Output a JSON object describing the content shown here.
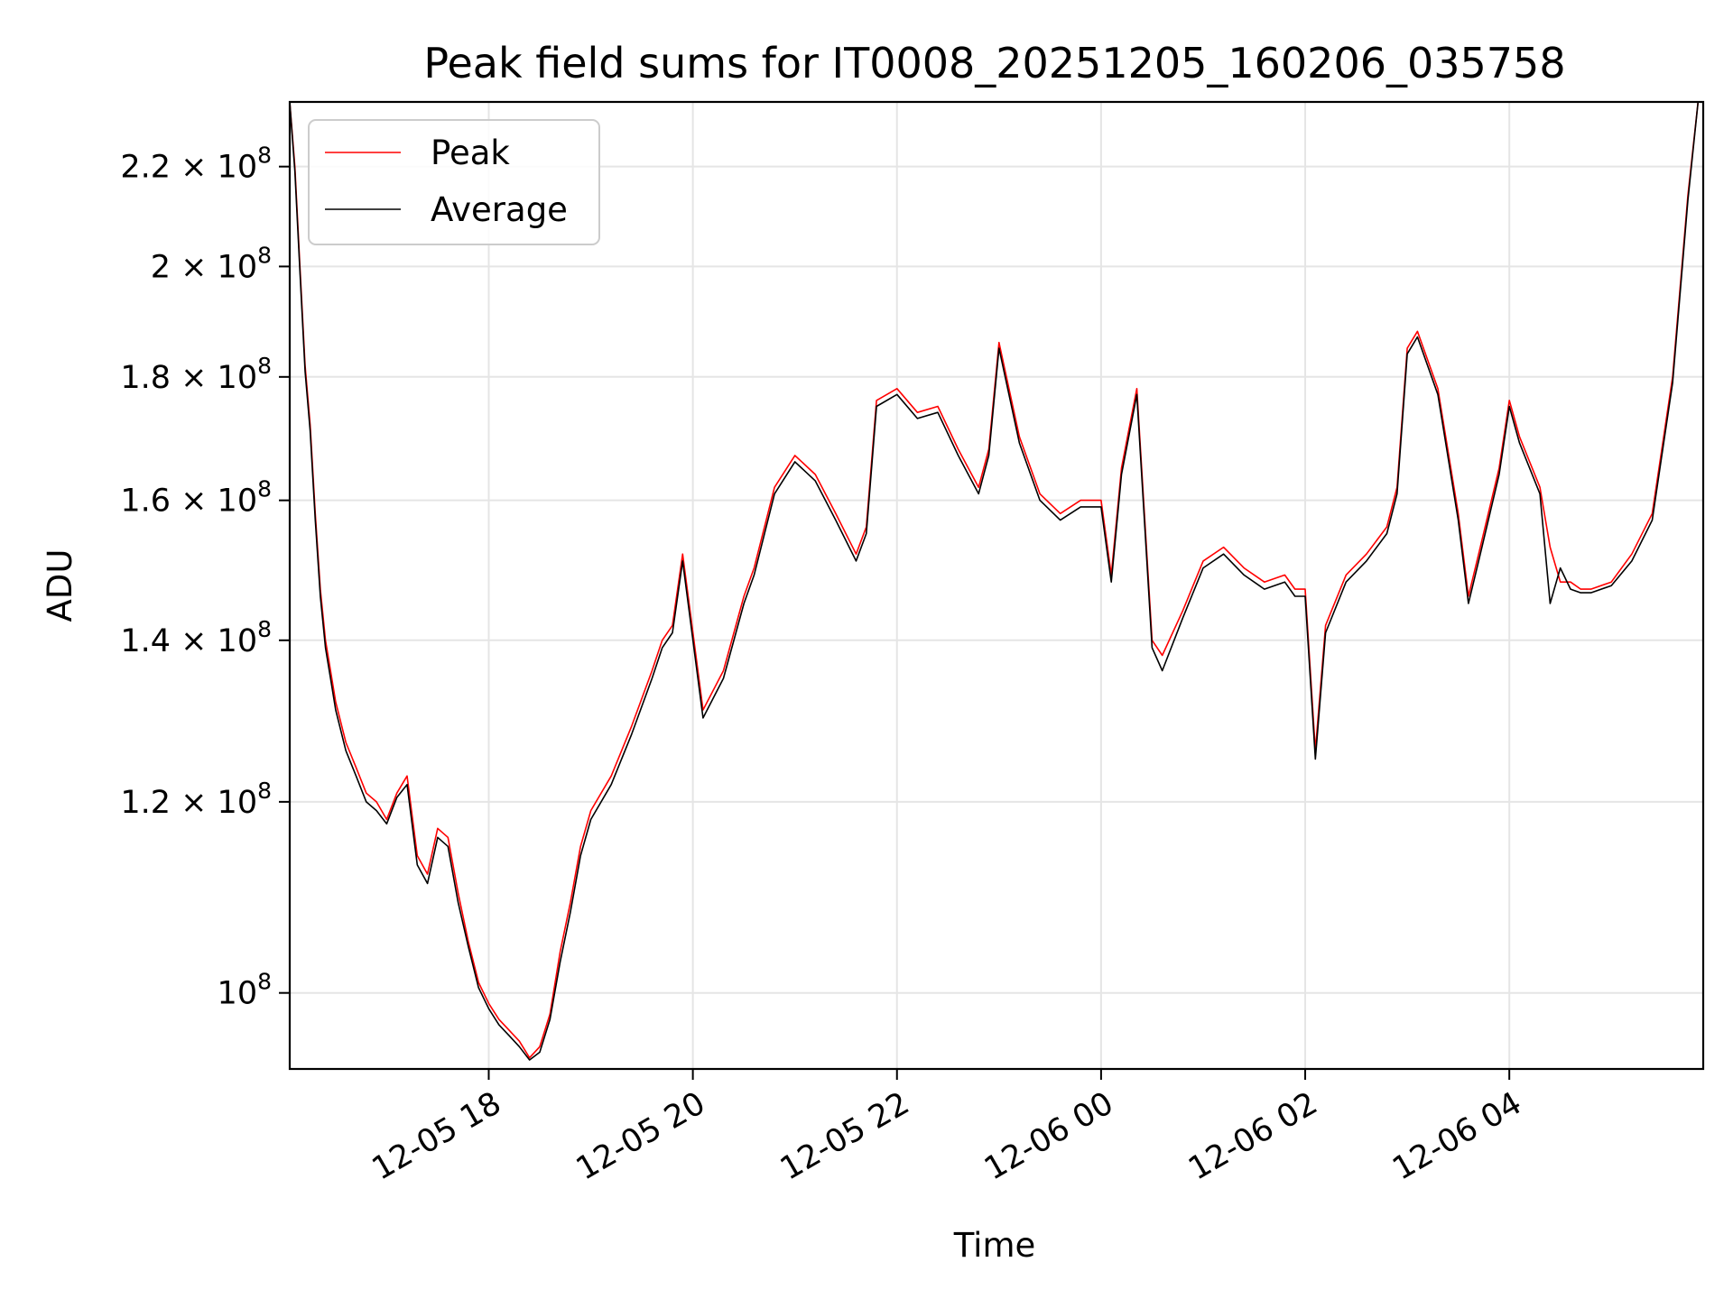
{
  "chart_data": {
    "type": "line",
    "title": "Peak field sums for IT0008_20251205_160206_035758",
    "xlabel": "Time",
    "ylabel": "ADU",
    "yscale": "log",
    "ylim": [
      93000000,
      234000000
    ],
    "xlim": [
      16.05,
      29.9
    ],
    "grid": true,
    "legend_position": "top-left",
    "x_ticks": [
      {
        "value": 18,
        "label": "12-05 18"
      },
      {
        "value": 20,
        "label": "12-05 20"
      },
      {
        "value": 22,
        "label": "12-05 22"
      },
      {
        "value": 24,
        "label": "12-06 00"
      },
      {
        "value": 26,
        "label": "12-06 02"
      },
      {
        "value": 28,
        "label": "12-06 04"
      }
    ],
    "y_ticks": [
      {
        "value": 100000000,
        "mantissa": "",
        "exponent": "8"
      },
      {
        "value": 120000000,
        "mantissa": "1.2",
        "exponent": "8"
      },
      {
        "value": 140000000,
        "mantissa": "1.4",
        "exponent": "8"
      },
      {
        "value": 160000000,
        "mantissa": "1.6",
        "exponent": "8"
      },
      {
        "value": 180000000,
        "mantissa": "1.8",
        "exponent": "8"
      },
      {
        "value": 200000000,
        "mantissa": "2",
        "exponent": "8"
      },
      {
        "value": 220000000,
        "mantissa": "2.2",
        "exponent": "8"
      }
    ],
    "series": [
      {
        "name": "Peak",
        "color": "#ff0000",
        "x": [
          16.05,
          16.1,
          16.15,
          16.2,
          16.25,
          16.3,
          16.35,
          16.4,
          16.45,
          16.5,
          16.6,
          16.7,
          16.8,
          16.9,
          17.0,
          17.1,
          17.2,
          17.3,
          17.4,
          17.5,
          17.6,
          17.7,
          17.8,
          17.9,
          18.0,
          18.1,
          18.2,
          18.3,
          18.4,
          18.5,
          18.6,
          18.7,
          18.8,
          18.9,
          19.0,
          19.2,
          19.4,
          19.6,
          19.7,
          19.8,
          19.9,
          20.1,
          20.3,
          20.5,
          20.6,
          20.8,
          21.0,
          21.2,
          21.4,
          21.6,
          21.7,
          21.8,
          22.0,
          22.2,
          22.4,
          22.6,
          22.8,
          22.9,
          23.0,
          23.2,
          23.4,
          23.6,
          23.8,
          24.0,
          24.1,
          24.2,
          24.35,
          24.5,
          24.6,
          24.8,
          25.0,
          25.2,
          25.4,
          25.6,
          25.8,
          25.9,
          26.0,
          26.1,
          26.2,
          26.4,
          26.6,
          26.8,
          26.9,
          27.0,
          27.1,
          27.3,
          27.5,
          27.6,
          27.7,
          27.9,
          28.0,
          28.1,
          28.3,
          28.4,
          28.5,
          28.6,
          28.7,
          28.8,
          29.0,
          29.2,
          29.4,
          29.6,
          29.75,
          29.85
        ],
        "y": [
          234000000,
          220000000,
          200000000,
          182000000,
          172000000,
          158000000,
          147000000,
          140000000,
          136000000,
          132000000,
          127000000,
          124000000,
          121000000,
          120000000,
          118000000,
          121000000,
          123000000,
          114000000,
          112000000,
          117000000,
          116000000,
          110000000,
          105000000,
          101000000,
          99000000,
          97500000,
          96500000,
          95500000,
          94000000,
          95000000,
          98000000,
          104000000,
          109000000,
          115000000,
          119000000,
          123000000,
          129000000,
          136000000,
          140000000,
          142000000,
          152000000,
          131000000,
          136000000,
          146000000,
          150000000,
          162000000,
          167000000,
          164000000,
          158000000,
          152000000,
          156000000,
          176000000,
          178000000,
          174000000,
          175000000,
          168000000,
          162000000,
          168000000,
          186000000,
          170000000,
          161000000,
          158000000,
          160000000,
          160000000,
          149000000,
          165000000,
          178000000,
          140000000,
          138000000,
          144000000,
          151000000,
          153000000,
          150000000,
          148000000,
          149000000,
          147000000,
          147000000,
          126000000,
          142000000,
          149000000,
          152000000,
          156000000,
          162000000,
          185000000,
          188000000,
          178000000,
          158000000,
          146000000,
          152000000,
          165000000,
          176000000,
          170000000,
          162000000,
          153000000,
          148000000,
          148000000,
          147000000,
          147000000,
          148000000,
          152000000,
          158000000,
          180000000,
          214000000,
          234000000
        ]
      },
      {
        "name": "Average",
        "color": "#000000",
        "x": [
          16.05,
          16.1,
          16.15,
          16.2,
          16.25,
          16.3,
          16.35,
          16.4,
          16.45,
          16.5,
          16.6,
          16.7,
          16.8,
          16.9,
          17.0,
          17.1,
          17.2,
          17.3,
          17.4,
          17.5,
          17.6,
          17.7,
          17.8,
          17.9,
          18.0,
          18.1,
          18.2,
          18.3,
          18.4,
          18.5,
          18.6,
          18.7,
          18.8,
          18.9,
          19.0,
          19.2,
          19.4,
          19.6,
          19.7,
          19.8,
          19.9,
          20.1,
          20.3,
          20.5,
          20.6,
          20.8,
          21.0,
          21.2,
          21.4,
          21.6,
          21.7,
          21.8,
          22.0,
          22.2,
          22.4,
          22.6,
          22.8,
          22.9,
          23.0,
          23.2,
          23.4,
          23.6,
          23.8,
          24.0,
          24.1,
          24.2,
          24.35,
          24.5,
          24.6,
          24.8,
          25.0,
          25.2,
          25.4,
          25.6,
          25.8,
          25.9,
          26.0,
          26.1,
          26.2,
          26.4,
          26.6,
          26.8,
          26.9,
          27.0,
          27.1,
          27.3,
          27.5,
          27.6,
          27.7,
          27.9,
          28.0,
          28.1,
          28.3,
          28.4,
          28.5,
          28.6,
          28.7,
          28.8,
          29.0,
          29.2,
          29.4,
          29.6,
          29.75,
          29.85
        ],
        "y": [
          234000000,
          219000000,
          199000000,
          181000000,
          171000000,
          157000000,
          146000000,
          139000000,
          135000000,
          131000000,
          126000000,
          123000000,
          120000000,
          119000000,
          117500000,
          120500000,
          122000000,
          113000000,
          111000000,
          116000000,
          115000000,
          109000000,
          104500000,
          100500000,
          98500000,
          97000000,
          96000000,
          95000000,
          93800000,
          94500000,
          97500000,
          103000000,
          108000000,
          114000000,
          118000000,
          122000000,
          128000000,
          135000000,
          139000000,
          141000000,
          151000000,
          130000000,
          135000000,
          145000000,
          149000000,
          161000000,
          166000000,
          163000000,
          157000000,
          151000000,
          155000000,
          175000000,
          177000000,
          173000000,
          174000000,
          167000000,
          161000000,
          167000000,
          185000000,
          169000000,
          160000000,
          157000000,
          159000000,
          159000000,
          148000000,
          164000000,
          177000000,
          139000000,
          136000000,
          143000000,
          150000000,
          152000000,
          149000000,
          147000000,
          148000000,
          146000000,
          146000000,
          125000000,
          141000000,
          148000000,
          151000000,
          155000000,
          161000000,
          184000000,
          187000000,
          177000000,
          157000000,
          145000000,
          151000000,
          164000000,
          175000000,
          169000000,
          161000000,
          145000000,
          150000000,
          147000000,
          146500000,
          146500000,
          147500000,
          151000000,
          157000000,
          179000000,
          213000000,
          234000000
        ]
      }
    ]
  }
}
